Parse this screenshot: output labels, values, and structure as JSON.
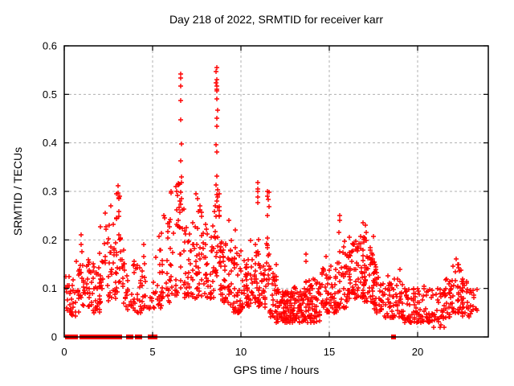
{
  "chart_data": {
    "type": "scatter",
    "title": "Day 218 of 2022, SRMTID for receiver karr",
    "xlabel": "GPS time / hours",
    "ylabel": "SRMTID / TECUs",
    "xlim": [
      0,
      24
    ],
    "ylim": [
      0,
      0.6
    ],
    "xticks": [
      "0",
      "5",
      "10",
      "15",
      "20"
    ],
    "yticks": [
      "0",
      "0.1",
      "0.2",
      "0.3",
      "0.4",
      "0.5",
      "0.6"
    ],
    "grid": true,
    "legend": false,
    "marker": "plus",
    "marker_color": "#ff0000",
    "grid_color": "#b0b0b0",
    "border_color": "#000000",
    "background": "#ffffff",
    "cloud_bins": [
      [
        0.1,
        0.35,
        0.05,
        0.13,
        16,
        1.3
      ],
      [
        0.35,
        0.7,
        0.04,
        0.12,
        18,
        1.3
      ],
      [
        0.7,
        1.0,
        0.05,
        0.16,
        16,
        1.4
      ],
      [
        1.0,
        1.5,
        0.06,
        0.16,
        28,
        1.5
      ],
      [
        1.5,
        2.0,
        0.05,
        0.19,
        28,
        1.5
      ],
      [
        2.0,
        2.5,
        0.07,
        0.24,
        30,
        1.6
      ],
      [
        2.5,
        3.0,
        0.08,
        0.28,
        28,
        1.7
      ],
      [
        2.95,
        3.25,
        0.08,
        0.3,
        18,
        1.3
      ],
      [
        3.25,
        3.6,
        0.06,
        0.18,
        16,
        1.5
      ],
      [
        3.6,
        4.2,
        0.05,
        0.16,
        24,
        1.5
      ],
      [
        4.2,
        5.0,
        0.05,
        0.17,
        30,
        1.6
      ],
      [
        5.0,
        5.5,
        0.06,
        0.22,
        22,
        1.7
      ],
      [
        5.5,
        6.0,
        0.07,
        0.24,
        26,
        1.6
      ],
      [
        6.0,
        6.4,
        0.08,
        0.3,
        24,
        1.5
      ],
      [
        6.4,
        6.75,
        0.1,
        0.32,
        20,
        1.2
      ],
      [
        6.75,
        7.0,
        0.08,
        0.24,
        16,
        1.5
      ],
      [
        7.0,
        7.5,
        0.08,
        0.26,
        30,
        1.7
      ],
      [
        7.5,
        8.0,
        0.08,
        0.27,
        32,
        1.7
      ],
      [
        8.0,
        8.45,
        0.08,
        0.25,
        30,
        1.6
      ],
      [
        8.45,
        8.8,
        0.1,
        0.3,
        24,
        1.2
      ],
      [
        8.8,
        9.0,
        0.07,
        0.2,
        16,
        1.5
      ],
      [
        9.0,
        9.5,
        0.06,
        0.2,
        36,
        1.7
      ],
      [
        9.5,
        10.0,
        0.05,
        0.19,
        38,
        1.7
      ],
      [
        10.0,
        10.5,
        0.06,
        0.18,
        38,
        1.7
      ],
      [
        10.5,
        11.0,
        0.07,
        0.21,
        34,
        1.7
      ],
      [
        11.0,
        11.4,
        0.06,
        0.18,
        28,
        1.6
      ],
      [
        11.45,
        11.65,
        0.1,
        0.3,
        16,
        1.1
      ],
      [
        11.65,
        12.0,
        0.04,
        0.15,
        26,
        1.5
      ],
      [
        12.0,
        12.5,
        0.03,
        0.11,
        46,
        1.5
      ],
      [
        12.5,
        13.0,
        0.03,
        0.1,
        46,
        1.5
      ],
      [
        13.0,
        13.5,
        0.03,
        0.11,
        42,
        1.5
      ],
      [
        13.5,
        14.0,
        0.03,
        0.12,
        40,
        1.5
      ],
      [
        14.0,
        14.5,
        0.03,
        0.12,
        38,
        1.5
      ],
      [
        14.5,
        15.0,
        0.05,
        0.15,
        34,
        1.6
      ],
      [
        15.0,
        15.5,
        0.05,
        0.17,
        32,
        1.6
      ],
      [
        15.5,
        16.0,
        0.06,
        0.21,
        32,
        1.6
      ],
      [
        16.0,
        16.5,
        0.08,
        0.21,
        42,
        1.5
      ],
      [
        16.5,
        17.0,
        0.08,
        0.22,
        44,
        1.5
      ],
      [
        17.0,
        17.5,
        0.07,
        0.21,
        42,
        1.5
      ],
      [
        17.5,
        18.0,
        0.05,
        0.16,
        36,
        1.5
      ],
      [
        18.0,
        18.7,
        0.04,
        0.13,
        36,
        1.5
      ],
      [
        18.7,
        19.2,
        0.04,
        0.13,
        30,
        1.5
      ],
      [
        19.2,
        19.7,
        0.03,
        0.1,
        28,
        1.4
      ],
      [
        19.7,
        20.2,
        0.03,
        0.1,
        30,
        1.4
      ],
      [
        20.2,
        20.8,
        0.03,
        0.11,
        30,
        1.4
      ],
      [
        20.8,
        21.5,
        0.02,
        0.1,
        32,
        1.4
      ],
      [
        21.5,
        22.0,
        0.04,
        0.12,
        30,
        1.4
      ],
      [
        22.0,
        22.5,
        0.05,
        0.15,
        30,
        1.4
      ],
      [
        22.5,
        23.0,
        0.04,
        0.12,
        28,
        1.4
      ],
      [
        23.0,
        23.35,
        0.05,
        0.1,
        14,
        1.3
      ]
    ],
    "peak_points": [
      [
        0.95,
        0.21
      ],
      [
        0.97,
        0.19
      ],
      [
        1.0,
        0.175
      ],
      [
        2.3,
        0.255
      ],
      [
        2.62,
        0.27
      ],
      [
        2.95,
        0.295
      ],
      [
        3.03,
        0.311
      ],
      [
        3.03,
        0.296
      ],
      [
        3.1,
        0.285
      ],
      [
        4.5,
        0.19
      ],
      [
        5.62,
        0.25
      ],
      [
        5.7,
        0.245
      ],
      [
        6.3,
        0.31
      ],
      [
        6.57,
        0.542
      ],
      [
        6.58,
        0.534
      ],
      [
        6.6,
        0.517
      ],
      [
        6.57,
        0.487
      ],
      [
        6.6,
        0.448
      ],
      [
        6.62,
        0.398
      ],
      [
        6.6,
        0.363
      ],
      [
        6.63,
        0.33
      ],
      [
        6.58,
        0.299
      ],
      [
        6.61,
        0.274
      ],
      [
        7.45,
        0.295
      ],
      [
        7.55,
        0.285
      ],
      [
        8.62,
        0.556
      ],
      [
        8.6,
        0.547
      ],
      [
        8.63,
        0.53
      ],
      [
        8.61,
        0.524
      ],
      [
        8.64,
        0.517
      ],
      [
        8.62,
        0.511
      ],
      [
        8.65,
        0.507
      ],
      [
        8.63,
        0.49
      ],
      [
        8.66,
        0.467
      ],
      [
        8.62,
        0.451
      ],
      [
        8.65,
        0.434
      ],
      [
        8.6,
        0.396
      ],
      [
        8.64,
        0.382
      ],
      [
        8.63,
        0.332
      ],
      [
        8.61,
        0.313
      ],
      [
        8.66,
        0.303
      ],
      [
        8.64,
        0.293
      ],
      [
        8.62,
        0.28
      ],
      [
        9.3,
        0.24
      ],
      [
        9.7,
        0.22
      ],
      [
        10.97,
        0.319
      ],
      [
        10.96,
        0.305
      ],
      [
        10.95,
        0.3
      ],
      [
        10.96,
        0.288
      ],
      [
        10.94,
        0.277
      ],
      [
        11.5,
        0.3
      ],
      [
        11.52,
        0.29
      ],
      [
        11.55,
        0.283
      ],
      [
        13.66,
        0.17
      ],
      [
        13.68,
        0.155
      ],
      [
        14.8,
        0.165
      ],
      [
        15.57,
        0.25
      ],
      [
        15.6,
        0.24
      ],
      [
        15.55,
        0.215
      ],
      [
        16.9,
        0.235
      ],
      [
        17.06,
        0.23
      ],
      [
        17.1,
        0.215
      ],
      [
        19.0,
        0.14
      ],
      [
        22.2,
        0.16
      ],
      [
        22.25,
        0.15
      ]
    ],
    "zero_markers_x": [
      0.2,
      0.32,
      0.48,
      0.62,
      1.0,
      1.12,
      1.24,
      1.36,
      1.48,
      1.6,
      1.72,
      1.84,
      1.96,
      2.08,
      2.2,
      2.45,
      2.6,
      2.72,
      3.0,
      3.12,
      3.65,
      3.78,
      4.15,
      4.28,
      4.88,
      5.0,
      5.12,
      18.65
    ]
  }
}
